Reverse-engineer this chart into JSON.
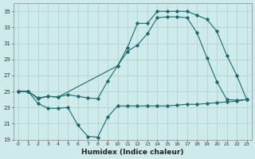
{
  "xlabel": "Humidex (Indice chaleur)",
  "bg_color": "#ceeaea",
  "grid_color": "#aed4d4",
  "line_color": "#1a6b6b",
  "xlim": [
    -0.5,
    23.5
  ],
  "ylim": [
    19,
    36
  ],
  "yticks": [
    19,
    21,
    23,
    25,
    27,
    29,
    31,
    33,
    35
  ],
  "xticks": [
    0,
    1,
    2,
    3,
    4,
    5,
    6,
    7,
    8,
    9,
    10,
    11,
    12,
    13,
    14,
    15,
    16,
    17,
    18,
    19,
    20,
    21,
    22,
    23
  ],
  "line1_x": [
    0,
    1,
    2,
    3,
    4,
    5,
    6,
    7,
    8,
    9,
    10,
    11,
    12,
    13,
    14,
    15,
    16,
    17,
    18,
    19,
    20,
    21,
    22,
    23
  ],
  "line1_y": [
    25.0,
    25.0,
    23.5,
    22.9,
    22.9,
    23.0,
    20.8,
    19.4,
    19.3,
    21.8,
    23.2,
    23.2,
    23.2,
    23.2,
    23.2,
    23.2,
    23.3,
    23.4,
    23.4,
    23.5,
    23.6,
    23.7,
    23.8,
    24.0
  ],
  "line2_x": [
    0,
    1,
    2,
    3,
    4,
    10,
    11,
    12,
    13,
    14,
    15,
    16,
    17,
    18,
    19,
    20,
    21,
    22,
    23
  ],
  "line2_y": [
    25.0,
    25.0,
    24.2,
    24.4,
    24.3,
    28.2,
    30.5,
    33.5,
    33.5,
    35.0,
    35.0,
    35.0,
    35.0,
    34.5,
    34.0,
    32.5,
    29.5,
    27.0,
    24.0
  ],
  "line3_x": [
    0,
    1,
    2,
    3,
    4,
    5,
    6,
    7,
    8,
    9,
    10,
    11,
    12,
    13,
    14,
    15,
    16,
    17,
    18,
    19,
    20,
    21,
    22,
    23
  ],
  "line3_y": [
    25.0,
    25.0,
    24.1,
    24.4,
    24.3,
    24.6,
    24.4,
    24.2,
    24.1,
    26.3,
    28.2,
    30.0,
    30.8,
    32.2,
    34.2,
    34.3,
    34.3,
    34.2,
    32.3,
    29.2,
    26.2,
    24.0,
    23.9,
    24.0
  ]
}
